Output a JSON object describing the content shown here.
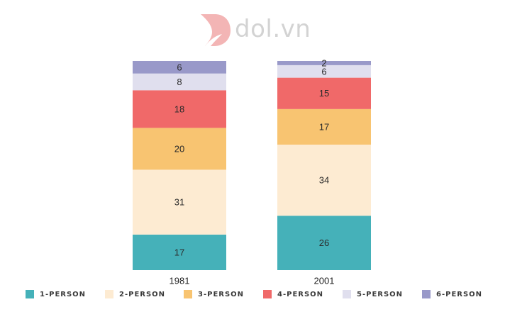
{
  "logo": {
    "text": "dol.vn"
  },
  "chart_data": {
    "type": "bar",
    "stacked": true,
    "categories": [
      "1981",
      "2001"
    ],
    "series": [
      {
        "name": "1-PERSON",
        "color": "#45b1b9",
        "values": [
          17,
          26
        ]
      },
      {
        "name": "2-PERSON",
        "color": "#fdebd2",
        "values": [
          31,
          34
        ]
      },
      {
        "name": "3-PERSON",
        "color": "#f8c471",
        "values": [
          20,
          17
        ]
      },
      {
        "name": "4-PERSON",
        "color": "#f06969",
        "values": [
          18,
          15
        ]
      },
      {
        "name": "5-PERSON",
        "color": "#e0dfee",
        "values": [
          8,
          6
        ]
      },
      {
        "name": "6-PERSON",
        "color": "#9999c9",
        "values": [
          6,
          2
        ]
      }
    ],
    "ylim": [
      0,
      100
    ],
    "legend_position": "bottom",
    "grid": false
  }
}
